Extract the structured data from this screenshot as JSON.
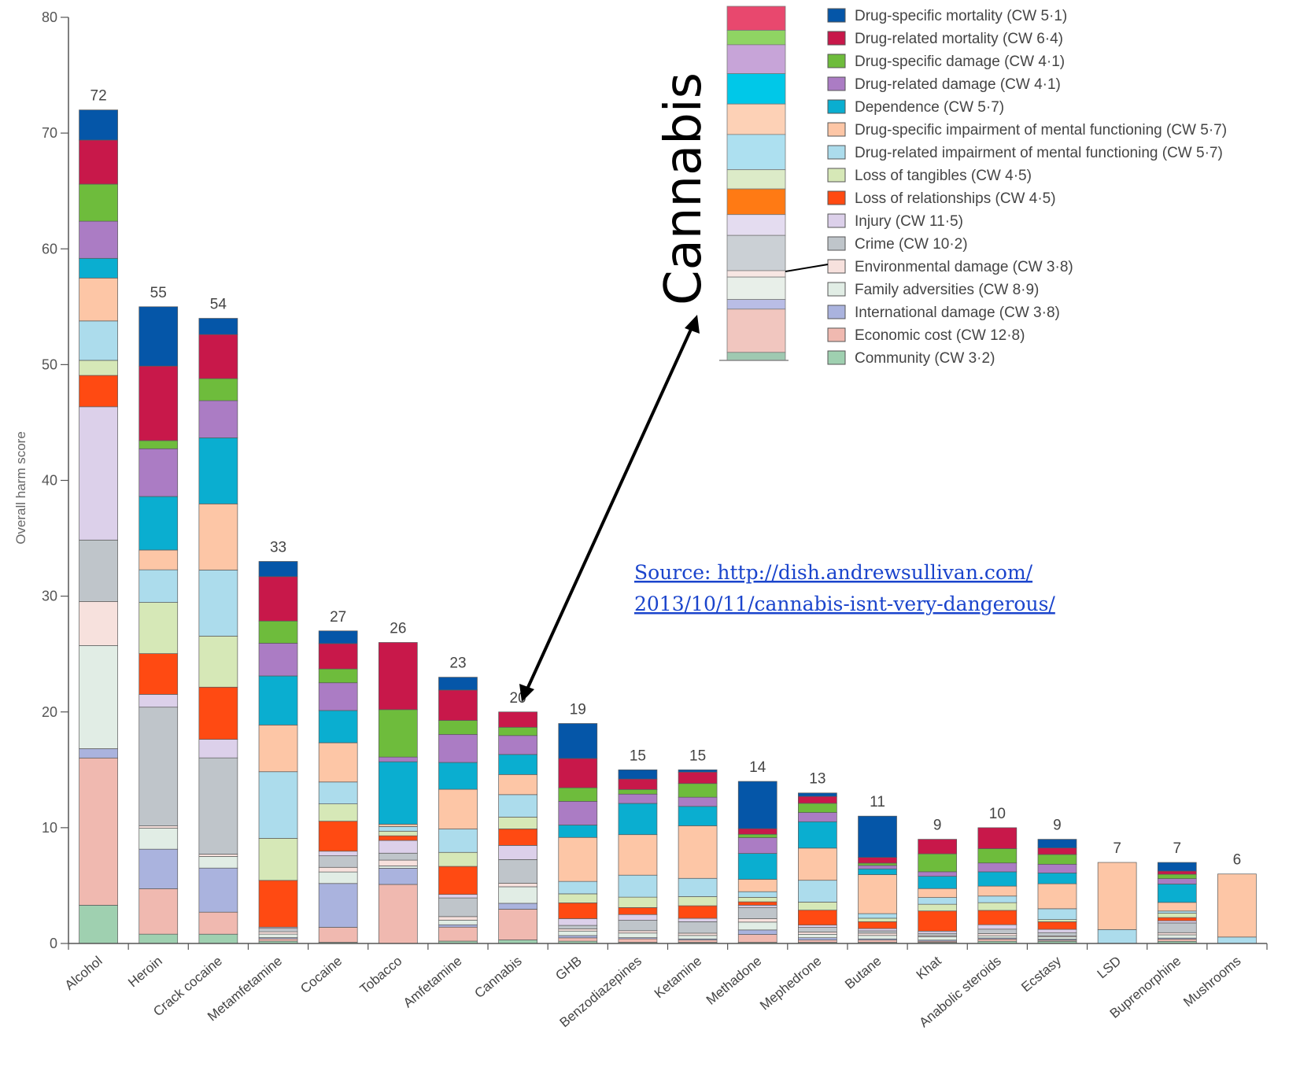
{
  "chart_data": {
    "type": "bar",
    "stacked": true,
    "title": "",
    "ylabel": "Overall harm score",
    "xlabel": "",
    "ylim": [
      0,
      80
    ],
    "yticks": [
      0,
      10,
      20,
      30,
      40,
      50,
      60,
      70,
      80
    ],
    "grid": false,
    "legend_position": "top-right",
    "categories": [
      "Alcohol",
      "Heroin",
      "Crack cocaine",
      "Metamfetamine",
      "Cocaine",
      "Tobacco",
      "Amfetamine",
      "Cannabis",
      "GHB",
      "Benzodiazepines",
      "Ketamine",
      "Methadone",
      "Mephedrone",
      "Butane",
      "Khat",
      "Anabolic steroids",
      "Ecstasy",
      "LSD",
      "Buprenorphine",
      "Mushrooms"
    ],
    "totals": [
      72,
      55,
      54,
      33,
      27,
      26,
      23,
      20,
      19,
      15,
      15,
      14,
      13,
      11,
      9,
      10,
      9,
      7,
      7,
      6
    ],
    "series": [
      {
        "name": "Community (CW 3·2)",
        "color": "#9fd0b0",
        "values": [
          3.3,
          0.8,
          0.8,
          0.2,
          0.1,
          0,
          0.2,
          0.3,
          0.2,
          0.1,
          0.1,
          0.1,
          0.1,
          0.1,
          0.1,
          0.2,
          0.2,
          0,
          0.2,
          0
        ]
      },
      {
        "name": "Economic cost (CW 12·8)",
        "color": "#f0b9b0",
        "values": [
          12.7,
          3.9,
          1.9,
          0.2,
          1.3,
          5.1,
          1.2,
          2.6,
          0.3,
          0.3,
          0.2,
          0.7,
          0.2,
          0.2,
          0.1,
          0.2,
          0.1,
          0,
          0.2,
          0
        ]
      },
      {
        "name": "International damage (CW 3·8)",
        "color": "#aab3de",
        "values": [
          0.8,
          3.4,
          3.8,
          0.1,
          3.8,
          1.4,
          0.2,
          0.5,
          0.2,
          0.1,
          0.1,
          0.4,
          0.2,
          0.1,
          0.1,
          0.1,
          0.1,
          0,
          0.1,
          0
        ]
      },
      {
        "name": "Family adversities (CW 8·9)",
        "color": "#e1ede5",
        "values": [
          8.9,
          1.8,
          1.0,
          0.3,
          1.0,
          0.2,
          0.4,
          1.4,
          0.4,
          0.4,
          0.3,
          0.7,
          0.3,
          0.3,
          0.3,
          0.2,
          0.2,
          0,
          0.3,
          0
        ]
      },
      {
        "name": "Environmental damage (CW 3·8)",
        "color": "#f7e1dd",
        "values": [
          3.8,
          0.2,
          0.2,
          0.2,
          0.4,
          0.5,
          0.3,
          0.3,
          0.2,
          0.2,
          0.2,
          0.3,
          0.2,
          0.2,
          0.1,
          0.2,
          0.1,
          0,
          0.2,
          0
        ]
      },
      {
        "name": "Crime (CW 10·2)",
        "color": "#bfc5ca",
        "values": [
          5.3,
          10.2,
          8.3,
          0.3,
          1.0,
          0.6,
          1.6,
          2.0,
          0.3,
          0.9,
          1.0,
          1.0,
          0.4,
          0.2,
          0.2,
          0.4,
          0.3,
          0,
          0.9,
          0
        ]
      },
      {
        "name": "Injury (CW 11·5)",
        "color": "#dcd0ea",
        "values": [
          11.5,
          1.1,
          1.6,
          0.1,
          0.4,
          1.1,
          0.3,
          1.2,
          0.6,
          0.5,
          0.3,
          0.2,
          0.2,
          0.2,
          0.2,
          0.4,
          0.3,
          0,
          0.2,
          0
        ]
      },
      {
        "name": "Loss of relationships (CW 4·5)",
        "color": "#ff4a12",
        "values": [
          2.7,
          3.5,
          4.5,
          4.0,
          2.6,
          0.4,
          2.4,
          1.4,
          1.4,
          0.6,
          1.1,
          0.3,
          1.3,
          0.6,
          1.8,
          1.3,
          0.7,
          0,
          0.3,
          0
        ]
      },
      {
        "name": "Loss of tangibles (CW 4·5)",
        "color": "#d6e8b7",
        "values": [
          1.3,
          4.4,
          4.4,
          3.6,
          1.5,
          0.4,
          1.2,
          1.0,
          0.8,
          0.9,
          0.8,
          0.4,
          0.7,
          0.3,
          0.6,
          0.7,
          0.2,
          0,
          0.4,
          0
        ]
      },
      {
        "name": "Drug-related impairment of mental functioning (CW 5·7)",
        "color": "#acdcec",
        "values": [
          3.4,
          2.8,
          5.7,
          5.7,
          1.9,
          0.4,
          2.0,
          1.9,
          1.1,
          1.9,
          1.6,
          0.5,
          1.9,
          0.4,
          0.6,
          0.6,
          1.0,
          1.2,
          0.2,
          0.5
        ]
      },
      {
        "name": "Drug-specific impairment of mental functioning (CW 5·7)",
        "color": "#fdc6a6",
        "values": [
          3.7,
          1.7,
          5.7,
          4.0,
          3.4,
          0.2,
          3.4,
          1.7,
          3.9,
          3.5,
          4.6,
          1.1,
          2.8,
          3.4,
          0.8,
          0.9,
          2.3,
          5.8,
          0.8,
          4.9
        ]
      },
      {
        "name": "Dependence (CW 5·7)",
        "color": "#0aaed0",
        "values": [
          1.7,
          4.6,
          5.7,
          4.2,
          2.8,
          5.4,
          2.3,
          1.7,
          1.1,
          2.7,
          1.7,
          2.3,
          2.3,
          0.5,
          1.1,
          1.3,
          1.0,
          0,
          1.7,
          0
        ]
      },
      {
        "name": "Drug-related damage (CW 4·1)",
        "color": "#ab7cc4",
        "values": [
          3.2,
          4.1,
          3.2,
          2.8,
          2.4,
          0.4,
          2.4,
          1.6,
          2.1,
          0.8,
          0.8,
          1.4,
          0.8,
          0.3,
          0.4,
          0.8,
          0.8,
          0,
          0.5,
          0
        ]
      },
      {
        "name": "Drug-specific damage (CW 4·1)",
        "color": "#6ebc3c",
        "values": [
          3.2,
          0.7,
          1.9,
          1.9,
          1.2,
          4.1,
          1.2,
          0.7,
          1.2,
          0.4,
          1.2,
          0.3,
          0.8,
          0.2,
          1.6,
          1.3,
          0.9,
          0,
          0.4,
          0
        ]
      },
      {
        "name": "Drug-related mortality (CW 6·4)",
        "color": "#c8184a",
        "values": [
          3.8,
          6.4,
          3.8,
          3.8,
          2.2,
          5.8,
          2.6,
          1.3,
          2.6,
          0.9,
          1.0,
          0.5,
          0.6,
          0.5,
          1.3,
          1.9,
          0.6,
          0,
          0.3,
          0
        ]
      },
      {
        "name": "Drug-specific mortality (CW 5·1)",
        "color": "#0556a8",
        "values": [
          2.6,
          5.1,
          1.4,
          1.3,
          1.1,
          0,
          1.1,
          0,
          3.1,
          0.8,
          0.2,
          4.2,
          0.3,
          3.6,
          0,
          0,
          0.8,
          0,
          0.8,
          0
        ]
      }
    ],
    "inset": {
      "label": "Cannabis",
      "segments_top_down": [
        "#e8486e",
        "#8fd463",
        "#c7a4d8",
        "#00c8e8",
        "#fdd1b6",
        "#ade0f0",
        "#dcebc8",
        "#ff7a14",
        "#e4dcf0",
        "#cbd0d5",
        "#f7e6e3",
        "#e8efe9",
        "#b9bde6",
        "#f1c6bf",
        "#9fc9b1"
      ]
    }
  },
  "source_link": {
    "line1": "Source: http://dish.andrewsullivan.com/",
    "line2": "2013/10/11/cannabis-isnt-very-dangerous/",
    "color": "#1a44cc"
  }
}
